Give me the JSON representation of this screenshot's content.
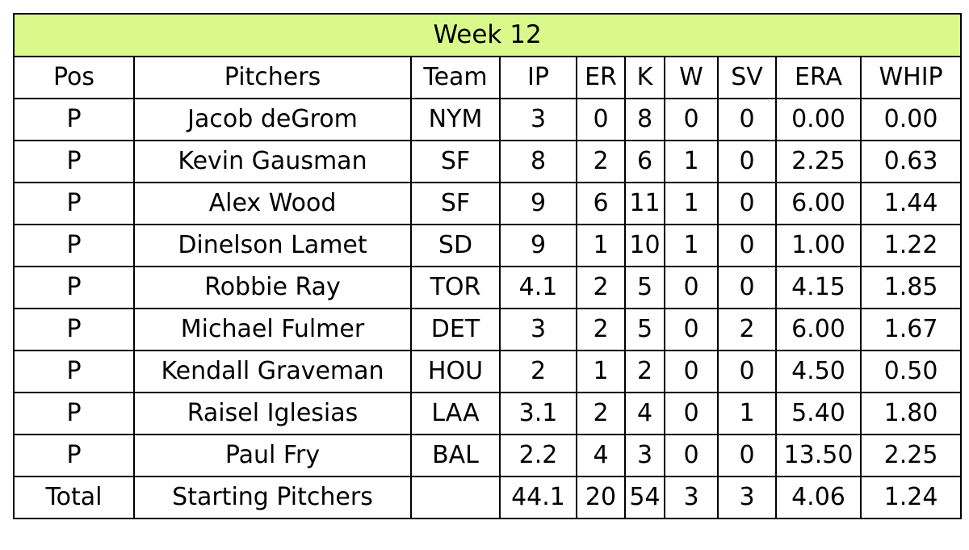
{
  "title": "Week 12",
  "title_bg": "#d9f98a",
  "headers": [
    "Pos",
    "Pitchers",
    "Team",
    "IP",
    "ER",
    "K",
    "W",
    "SV",
    "ERA",
    "WHIP"
  ],
  "rows": [
    [
      "P",
      "Jacob deGrom",
      "NYM",
      "3",
      "0",
      "8",
      "0",
      "0",
      "0.00",
      "0.00"
    ],
    [
      "P",
      "Kevin Gausman",
      "SF",
      "8",
      "2",
      "6",
      "1",
      "0",
      "2.25",
      "0.63"
    ],
    [
      "P",
      "Alex Wood",
      "SF",
      "9",
      "6",
      "11",
      "1",
      "0",
      "6.00",
      "1.44"
    ],
    [
      "P",
      "Dinelson Lamet",
      "SD",
      "9",
      "1",
      "10",
      "1",
      "0",
      "1.00",
      "1.22"
    ],
    [
      "P",
      "Robbie Ray",
      "TOR",
      "4.1",
      "2",
      "5",
      "0",
      "0",
      "4.15",
      "1.85"
    ],
    [
      "P",
      "Michael Fulmer",
      "DET",
      "3",
      "2",
      "5",
      "0",
      "2",
      "6.00",
      "1.67"
    ],
    [
      "P",
      "Kendall Graveman",
      "HOU",
      "2",
      "1",
      "2",
      "0",
      "0",
      "4.50",
      "0.50"
    ],
    [
      "P",
      "Raisel Iglesias",
      "LAA",
      "3.1",
      "2",
      "4",
      "0",
      "1",
      "5.40",
      "1.80"
    ],
    [
      "P",
      "Paul Fry",
      "BAL",
      "2.2",
      "4",
      "3",
      "0",
      "0",
      "13.50",
      "2.25"
    ]
  ],
  "total": [
    "Total",
    "Starting Pitchers",
    "",
    "44.1",
    "20",
    "54",
    "3",
    "3",
    "4.06",
    "1.24"
  ]
}
